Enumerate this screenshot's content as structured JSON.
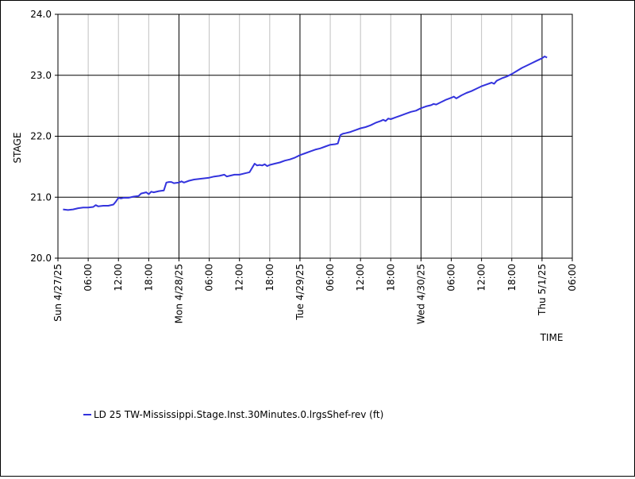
{
  "chart_data": {
    "type": "line",
    "xlabel": "TIME",
    "ylabel": "STAGE",
    "ylim": [
      20.0,
      24.0
    ],
    "y_ticks": [
      "20.0",
      "21.0",
      "22.0",
      "23.0",
      "24.0"
    ],
    "xlim_hours": [
      0,
      102
    ],
    "x_ticks": [
      {
        "hour": 0,
        "label": "Sun 4/27/25",
        "major": true
      },
      {
        "hour": 6,
        "label": "06:00",
        "major": false
      },
      {
        "hour": 12,
        "label": "12:00",
        "major": false
      },
      {
        "hour": 18,
        "label": "18:00",
        "major": false
      },
      {
        "hour": 24,
        "label": "Mon 4/28/25",
        "major": true
      },
      {
        "hour": 30,
        "label": "06:00",
        "major": false
      },
      {
        "hour": 36,
        "label": "12:00",
        "major": false
      },
      {
        "hour": 42,
        "label": "18:00",
        "major": false
      },
      {
        "hour": 48,
        "label": "Tue 4/29/25",
        "major": true
      },
      {
        "hour": 54,
        "label": "06:00",
        "major": false
      },
      {
        "hour": 60,
        "label": "12:00",
        "major": false
      },
      {
        "hour": 66,
        "label": "18:00",
        "major": false
      },
      {
        "hour": 72,
        "label": "Wed 4/30/25",
        "major": true
      },
      {
        "hour": 78,
        "label": "06:00",
        "major": false
      },
      {
        "hour": 84,
        "label": "12:00",
        "major": false
      },
      {
        "hour": 90,
        "label": "18:00",
        "major": false
      },
      {
        "hour": 96,
        "label": "Thu 5/1/25",
        "major": true
      },
      {
        "hour": 102,
        "label": "06:00",
        "major": false
      }
    ],
    "grid": true,
    "legend_position": "bottom-left",
    "series": [
      {
        "name": "LD 25 TW-Mississippi.Stage.Inst.30Minutes.0.lrgsShef-rev (ft)",
        "color": "#3333dd",
        "points": [
          [
            1.0,
            20.8
          ],
          [
            2.0,
            20.79
          ],
          [
            3.0,
            20.8
          ],
          [
            4.0,
            20.82
          ],
          [
            5.0,
            20.83
          ],
          [
            6.0,
            20.83
          ],
          [
            7.0,
            20.84
          ],
          [
            7.5,
            20.87
          ],
          [
            8.0,
            20.85
          ],
          [
            9.0,
            20.86
          ],
          [
            10.0,
            20.86
          ],
          [
            11.0,
            20.88
          ],
          [
            11.5,
            20.93
          ],
          [
            12.0,
            20.99
          ],
          [
            12.5,
            20.98
          ],
          [
            13.0,
            20.99
          ],
          [
            14.0,
            20.99
          ],
          [
            15.0,
            21.01
          ],
          [
            16.0,
            21.02
          ],
          [
            16.5,
            21.06
          ],
          [
            17.0,
            21.07
          ],
          [
            17.5,
            21.08
          ],
          [
            18.0,
            21.05
          ],
          [
            18.5,
            21.09
          ],
          [
            19.0,
            21.08
          ],
          [
            20.0,
            21.1
          ],
          [
            21.0,
            21.11
          ],
          [
            21.5,
            21.24
          ],
          [
            22.0,
            21.25
          ],
          [
            22.5,
            21.25
          ],
          [
            23.0,
            21.23
          ],
          [
            24.0,
            21.24
          ],
          [
            24.5,
            21.26
          ],
          [
            25.0,
            21.24
          ],
          [
            26.0,
            21.27
          ],
          [
            27.0,
            21.29
          ],
          [
            28.0,
            21.3
          ],
          [
            29.0,
            21.31
          ],
          [
            30.0,
            21.32
          ],
          [
            31.0,
            21.34
          ],
          [
            32.0,
            21.35
          ],
          [
            33.0,
            21.37
          ],
          [
            33.5,
            21.34
          ],
          [
            34.0,
            21.35
          ],
          [
            35.0,
            21.37
          ],
          [
            36.0,
            21.37
          ],
          [
            37.0,
            21.39
          ],
          [
            38.0,
            21.41
          ],
          [
            38.5,
            21.48
          ],
          [
            39.0,
            21.55
          ],
          [
            39.5,
            21.52
          ],
          [
            40.0,
            21.53
          ],
          [
            40.5,
            21.52
          ],
          [
            41.0,
            21.54
          ],
          [
            41.5,
            21.51
          ],
          [
            42.0,
            21.53
          ],
          [
            43.0,
            21.55
          ],
          [
            44.0,
            21.57
          ],
          [
            45.0,
            21.6
          ],
          [
            46.0,
            21.62
          ],
          [
            47.0,
            21.65
          ],
          [
            48.0,
            21.69
          ],
          [
            49.0,
            21.72
          ],
          [
            50.0,
            21.75
          ],
          [
            51.0,
            21.78
          ],
          [
            52.0,
            21.8
          ],
          [
            53.0,
            21.83
          ],
          [
            54.0,
            21.86
          ],
          [
            55.0,
            21.87
          ],
          [
            55.5,
            21.88
          ],
          [
            56.0,
            22.02
          ],
          [
            56.5,
            22.04
          ],
          [
            57.0,
            22.05
          ],
          [
            58.0,
            22.07
          ],
          [
            59.0,
            22.1
          ],
          [
            60.0,
            22.13
          ],
          [
            61.0,
            22.15
          ],
          [
            62.0,
            22.18
          ],
          [
            63.0,
            22.22
          ],
          [
            64.0,
            22.25
          ],
          [
            64.5,
            22.27
          ],
          [
            65.0,
            22.25
          ],
          [
            65.5,
            22.29
          ],
          [
            66.0,
            22.28
          ],
          [
            67.0,
            22.31
          ],
          [
            68.0,
            22.34
          ],
          [
            69.0,
            22.37
          ],
          [
            70.0,
            22.4
          ],
          [
            71.0,
            22.42
          ],
          [
            72.0,
            22.46
          ],
          [
            73.0,
            22.49
          ],
          [
            74.0,
            22.51
          ],
          [
            74.5,
            22.53
          ],
          [
            75.0,
            22.52
          ],
          [
            76.0,
            22.56
          ],
          [
            77.0,
            22.6
          ],
          [
            78.0,
            22.63
          ],
          [
            78.5,
            22.65
          ],
          [
            79.0,
            22.62
          ],
          [
            80.0,
            22.67
          ],
          [
            81.0,
            22.71
          ],
          [
            82.0,
            22.74
          ],
          [
            83.0,
            22.78
          ],
          [
            84.0,
            22.82
          ],
          [
            85.0,
            22.85
          ],
          [
            86.0,
            22.88
          ],
          [
            86.5,
            22.86
          ],
          [
            87.0,
            22.91
          ],
          [
            88.0,
            22.95
          ],
          [
            89.0,
            22.98
          ],
          [
            90.0,
            23.02
          ],
          [
            91.0,
            23.07
          ],
          [
            92.0,
            23.12
          ],
          [
            93.0,
            23.16
          ],
          [
            94.0,
            23.2
          ],
          [
            95.0,
            23.24
          ],
          [
            96.0,
            23.28
          ],
          [
            96.5,
            23.31
          ],
          [
            97.0,
            23.29
          ]
        ]
      }
    ]
  }
}
